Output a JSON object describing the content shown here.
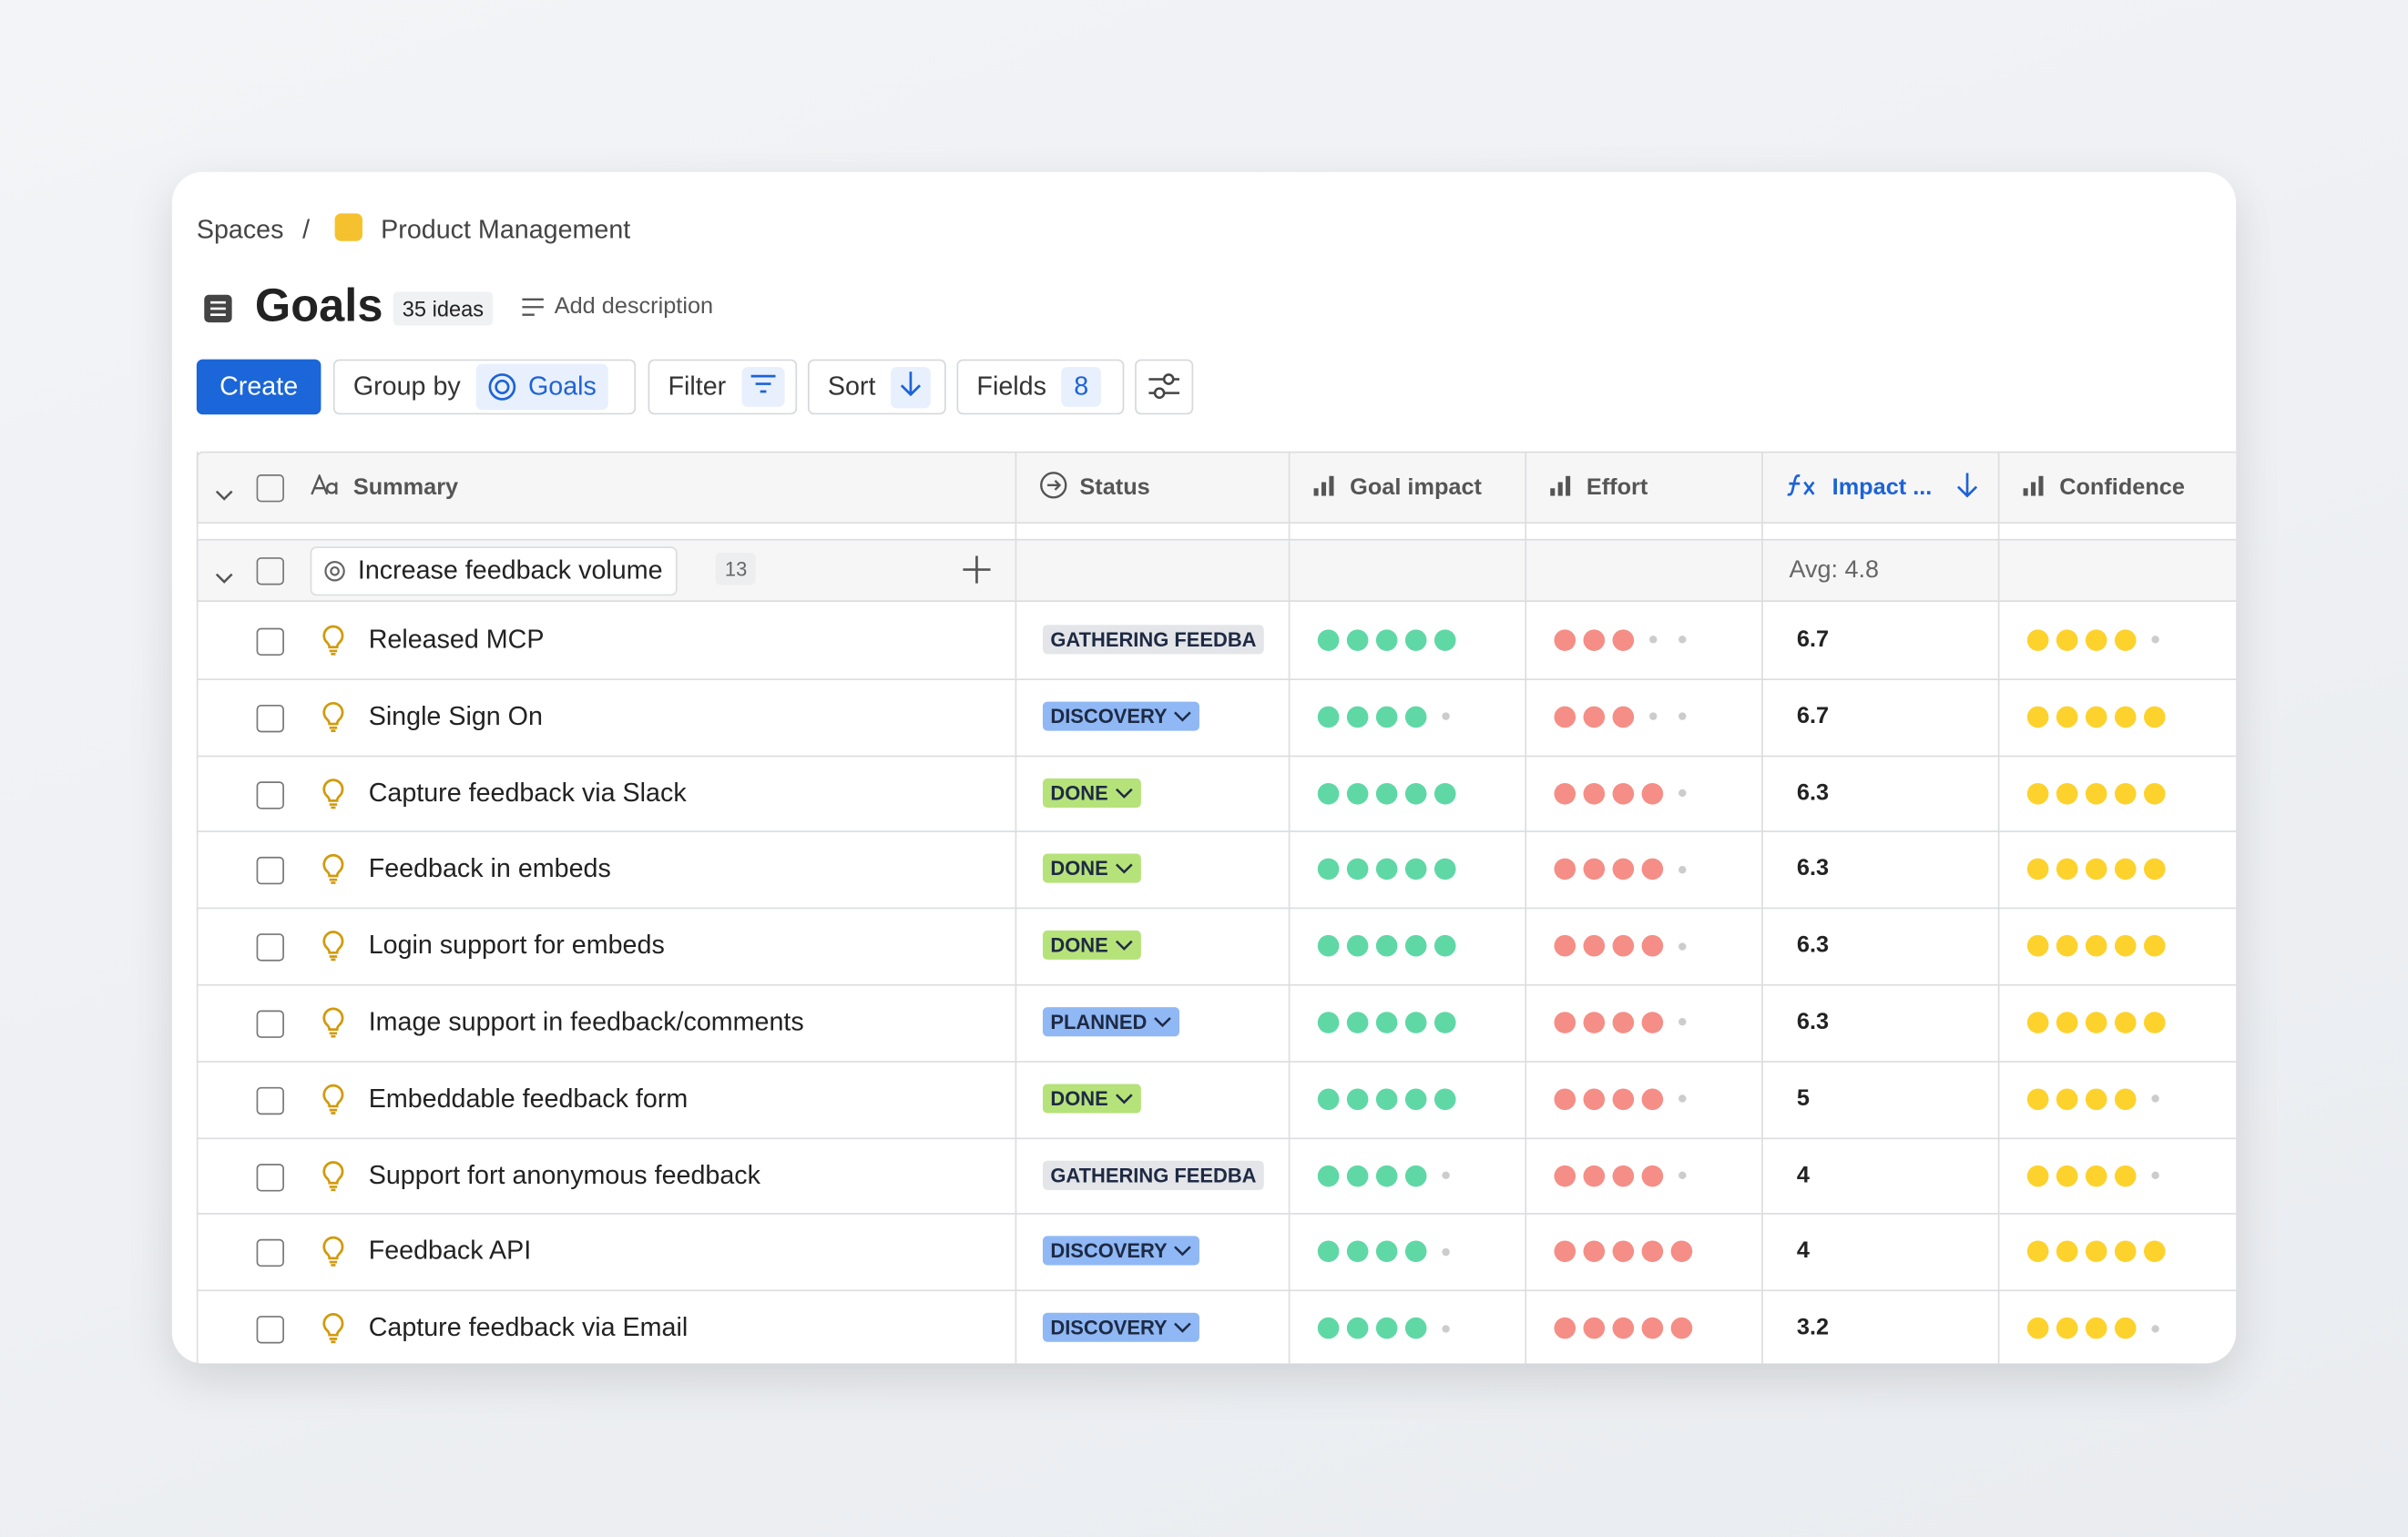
{
  "breadcrumb": {
    "root": "Spaces",
    "separator": "/",
    "space": "Product Management"
  },
  "header": {
    "title": "Goals",
    "count": "35 ideas",
    "add_description": "Add description"
  },
  "toolbar": {
    "create": "Create",
    "group_by": "Group by",
    "group_value": "Goals",
    "filter": "Filter",
    "sort": "Sort",
    "fields": "Fields",
    "fields_count": 8
  },
  "table": {
    "columns": [
      "Summary",
      "Status",
      "Goal impact",
      "Effort",
      "Impact ...",
      "Confidence"
    ],
    "rating_scale": 5,
    "colors": {
      "goal_impact": "#5fd8a6",
      "effort": "#f58e86",
      "confidence": "#fdd22c"
    },
    "group": {
      "name": "Increase feedback volume",
      "count": 13,
      "avg": "Avg: 4.8"
    },
    "rows": [
      {
        "summary": "Released MCP",
        "status": "GATHERING FEEDBA",
        "status_color": "#e4e5e8",
        "goal_impact": 5,
        "effort": 3,
        "impact": 6.7,
        "confidence": 4
      },
      {
        "summary": "Single Sign On",
        "status": "DISCOVERY",
        "status_color": "#8fb8f5",
        "goal_impact": 4,
        "effort": 3,
        "impact": 6.7,
        "confidence": 5
      },
      {
        "summary": "Capture feedback via Slack",
        "status": "DONE",
        "status_color": "#b6e27a",
        "goal_impact": 5,
        "effort": 4,
        "impact": 6.3,
        "confidence": 5
      },
      {
        "summary": "Feedback in embeds",
        "status": "DONE",
        "status_color": "#b6e27a",
        "goal_impact": 5,
        "effort": 4,
        "impact": 6.3,
        "confidence": 5
      },
      {
        "summary": "Login support for embeds",
        "status": "DONE",
        "status_color": "#b6e27a",
        "goal_impact": 5,
        "effort": 4,
        "impact": 6.3,
        "confidence": 5
      },
      {
        "summary": "Image support in feedback/comments",
        "status": "PLANNED",
        "status_color": "#8fb8f5",
        "goal_impact": 5,
        "effort": 4,
        "impact": 6.3,
        "confidence": 5
      },
      {
        "summary": "Embeddable feedback form",
        "status": "DONE",
        "status_color": "#b6e27a",
        "goal_impact": 5,
        "effort": 4,
        "impact": 5,
        "confidence": 4
      },
      {
        "summary": "Support fort anonymous feedback",
        "status": "GATHERING FEEDBA",
        "status_color": "#e4e5e8",
        "goal_impact": 4,
        "effort": 4,
        "impact": 4,
        "confidence": 4
      },
      {
        "summary": "Feedback API",
        "status": "DISCOVERY",
        "status_color": "#8fb8f5",
        "goal_impact": 4,
        "effort": 5,
        "impact": 4,
        "confidence": 5
      },
      {
        "summary": "Capture feedback via Email",
        "status": "DISCOVERY",
        "status_color": "#8fb8f5",
        "goal_impact": 4,
        "effort": 5,
        "impact": 3.2,
        "confidence": 4
      }
    ]
  }
}
